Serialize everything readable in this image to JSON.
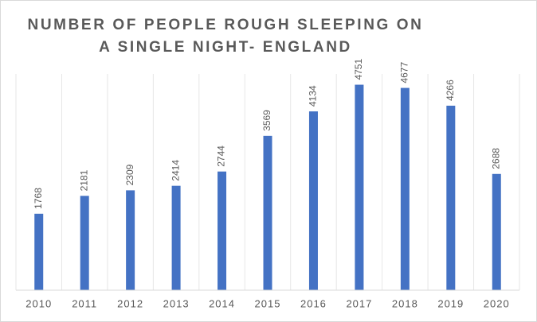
{
  "chart_data": {
    "type": "bar",
    "title": "NUMBER OF PEOPLE ROUGH SLEEPING ON A SINGLE NIGHT- ENGLAND",
    "categories": [
      "2010",
      "2011",
      "2012",
      "2013",
      "2014",
      "2015",
      "2016",
      "2017",
      "2018",
      "2019",
      "2020"
    ],
    "values": [
      1768,
      2181,
      2309,
      2414,
      2744,
      3569,
      4134,
      4751,
      4677,
      4266,
      2688
    ],
    "color": "#4472c4",
    "ylim": [
      0,
      5000
    ]
  }
}
